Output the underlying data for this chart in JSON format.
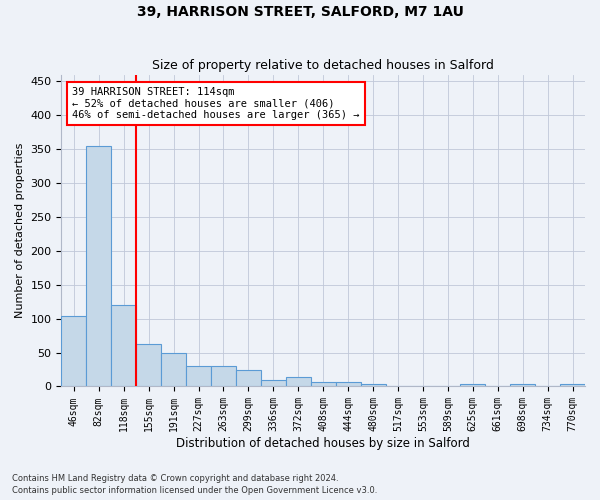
{
  "title": "39, HARRISON STREET, SALFORD, M7 1AU",
  "subtitle": "Size of property relative to detached houses in Salford",
  "xlabel": "Distribution of detached houses by size in Salford",
  "ylabel": "Number of detached properties",
  "bins": [
    "46sqm",
    "82sqm",
    "118sqm",
    "155sqm",
    "191sqm",
    "227sqm",
    "263sqm",
    "299sqm",
    "336sqm",
    "372sqm",
    "408sqm",
    "444sqm",
    "480sqm",
    "517sqm",
    "553sqm",
    "589sqm",
    "625sqm",
    "661sqm",
    "698sqm",
    "734sqm",
    "770sqm"
  ],
  "values": [
    104,
    355,
    120,
    62,
    50,
    30,
    30,
    25,
    10,
    14,
    6,
    7,
    3,
    1,
    0,
    0,
    3,
    0,
    3,
    0,
    3
  ],
  "bar_color": "#c5d8e8",
  "bar_edge_color": "#5b9bd5",
  "red_line_index": 2,
  "annotation_lines": [
    "39 HARRISON STREET: 114sqm",
    "← 52% of detached houses are smaller (406)",
    "46% of semi-detached houses are larger (365) →"
  ],
  "annotation_box_color": "white",
  "annotation_box_edge_color": "red",
  "property_line_color": "red",
  "footer_line1": "Contains HM Land Registry data © Crown copyright and database right 2024.",
  "footer_line2": "Contains public sector information licensed under the Open Government Licence v3.0.",
  "bg_color": "#eef2f8",
  "plot_bg_color": "#eef2f8",
  "ylim": [
    0,
    460
  ],
  "yticks": [
    0,
    50,
    100,
    150,
    200,
    250,
    300,
    350,
    400,
    450
  ]
}
